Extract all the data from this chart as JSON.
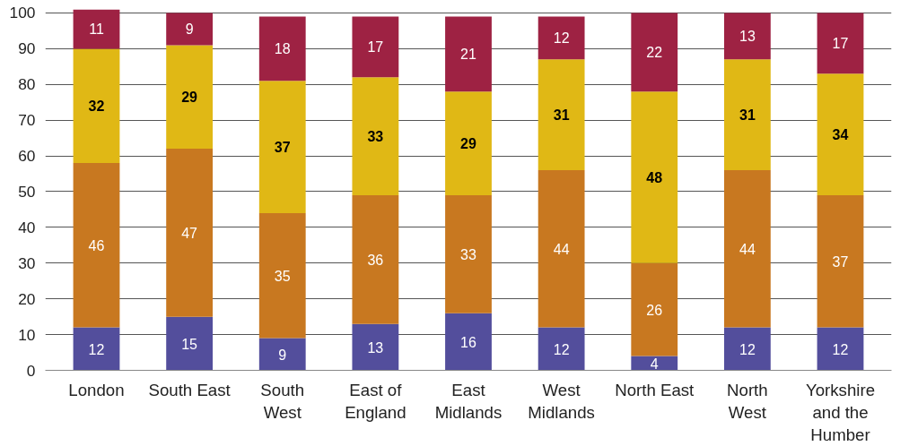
{
  "chart_data": {
    "type": "bar",
    "stacked": true,
    "data_labels": true,
    "grid": "y",
    "categories": [
      "London",
      "South East",
      "South\nWest",
      "East of\nEngland",
      "East\nMidlands",
      "West\nMidlands",
      "North East",
      "North\nWest",
      "Yorkshire\nand the\nHumber"
    ],
    "series": [
      {
        "color": "#534e9c",
        "values": [
          12,
          15,
          9,
          13,
          16,
          12,
          4,
          12,
          12
        ]
      },
      {
        "color": "#c87820",
        "values": [
          46,
          47,
          35,
          36,
          33,
          44,
          26,
          44,
          37
        ]
      },
      {
        "color": "#e0b815",
        "values": [
          32,
          29,
          37,
          33,
          29,
          31,
          48,
          31,
          34
        ]
      },
      {
        "color": "#9e2243",
        "values": [
          11,
          9,
          18,
          17,
          21,
          12,
          22,
          13,
          17
        ]
      }
    ],
    "ylim": [
      0,
      101
    ],
    "yticks": [
      0,
      10,
      20,
      30,
      40,
      50,
      60,
      70,
      80,
      90,
      100
    ]
  }
}
